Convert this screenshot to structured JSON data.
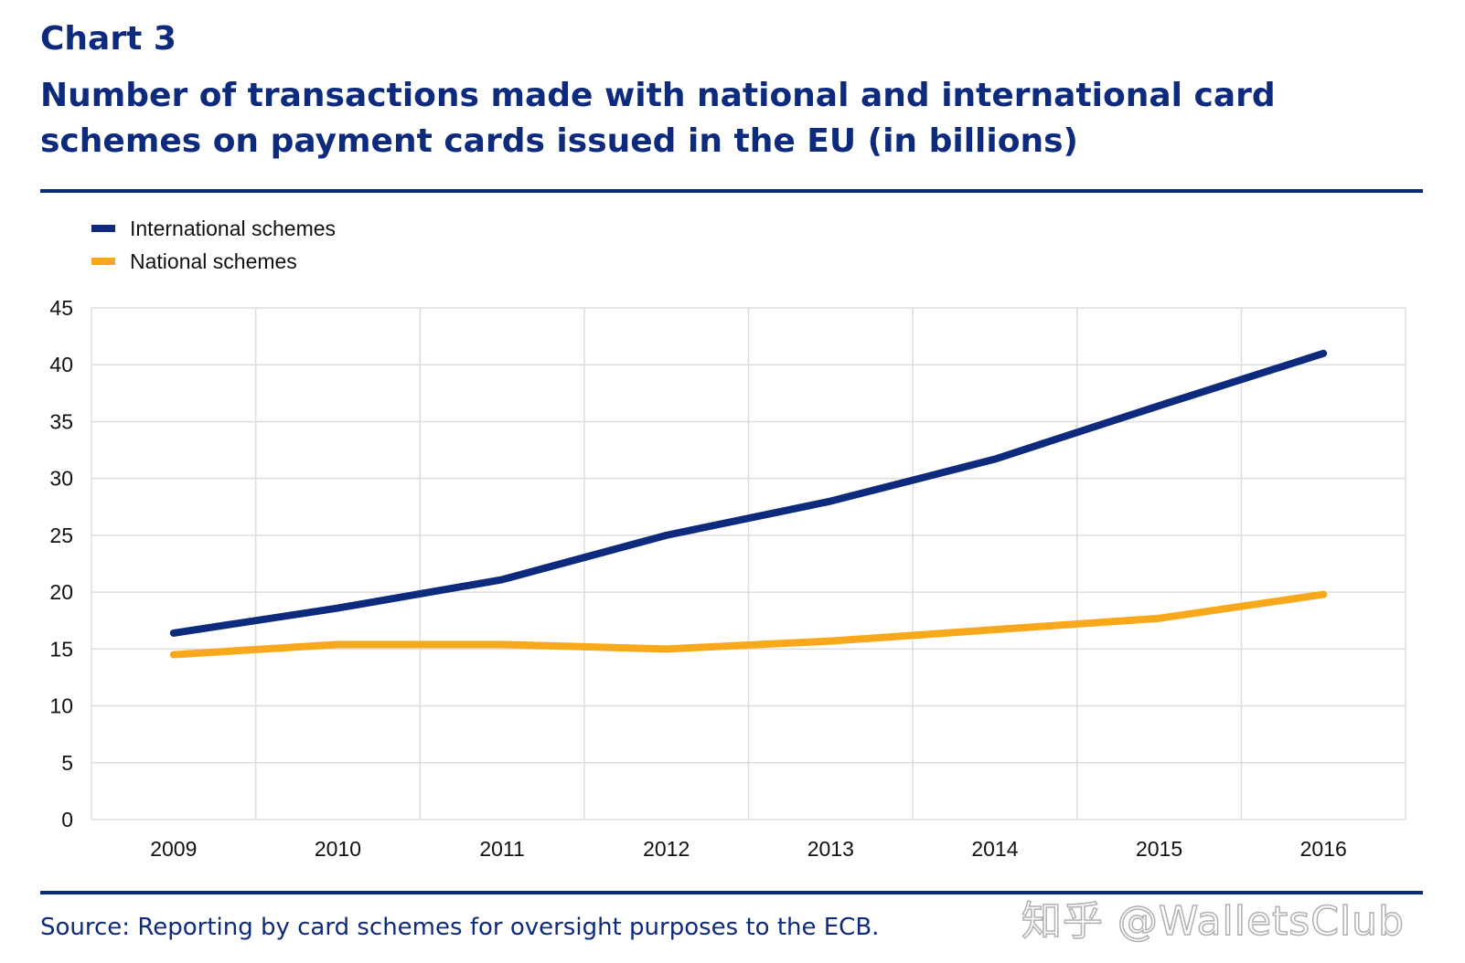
{
  "header": {
    "chart_label": "Chart 3",
    "title": "Number of transactions made with national and international card schemes on payment cards issued in the EU (in billions)"
  },
  "footer": {
    "source": "Source: Reporting by card schemes for oversight purposes to the ECB.",
    "watermark": "知乎 @WalletsClub"
  },
  "colors": {
    "accent": "#0d2a7d",
    "international": "#0d2a7d",
    "national": "#f7a81b",
    "grid": "#dddddd"
  },
  "chart_data": {
    "type": "line",
    "title": "Number of transactions made with national and international card schemes on payment cards issued in the EU (in billions)",
    "xlabel": "",
    "ylabel": "",
    "categories": [
      "2009",
      "2010",
      "2011",
      "2012",
      "2013",
      "2014",
      "2015",
      "2016"
    ],
    "ylim": [
      0,
      45
    ],
    "yticks": [
      0,
      5,
      10,
      15,
      20,
      25,
      30,
      35,
      40,
      45
    ],
    "grid": true,
    "legend_position": "top-left",
    "series": [
      {
        "name": "International schemes",
        "color": "#0d2a7d",
        "values": [
          16.4,
          18.6,
          21.1,
          25.0,
          28.0,
          31.7,
          36.4,
          41.0
        ]
      },
      {
        "name": "National schemes",
        "color": "#f7a81b",
        "values": [
          14.5,
          15.4,
          15.4,
          15.0,
          15.7,
          16.7,
          17.7,
          19.8
        ]
      }
    ]
  }
}
